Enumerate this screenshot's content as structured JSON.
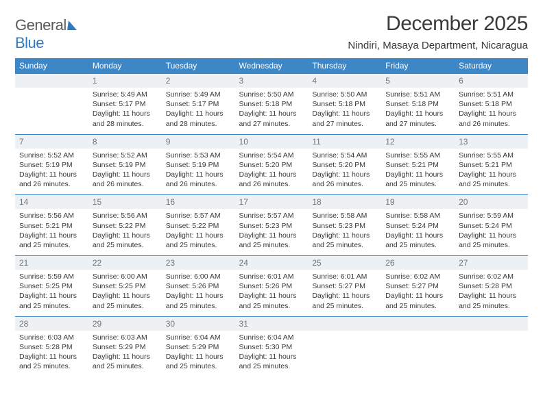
{
  "brand": {
    "name_a": "General",
    "name_b": "Blue"
  },
  "title": "December 2025",
  "location": "Nindiri, Masaya Department, Nicaragua",
  "colors": {
    "header_bg": "#3d87c7",
    "header_text": "#ffffff",
    "daynum_bg": "#eef1f3",
    "daynum_text": "#707477",
    "rule": "#3d87c7",
    "body_text": "#383838",
    "title_text": "#3a3a3a"
  },
  "daysOfWeek": [
    "Sunday",
    "Monday",
    "Tuesday",
    "Wednesday",
    "Thursday",
    "Friday",
    "Saturday"
  ],
  "weeks": [
    [
      {
        "n": "",
        "sr": "",
        "ss": "",
        "dl": ""
      },
      {
        "n": "1",
        "sr": "5:49 AM",
        "ss": "5:17 PM",
        "dl": "11 hours and 28 minutes."
      },
      {
        "n": "2",
        "sr": "5:49 AM",
        "ss": "5:17 PM",
        "dl": "11 hours and 28 minutes."
      },
      {
        "n": "3",
        "sr": "5:50 AM",
        "ss": "5:18 PM",
        "dl": "11 hours and 27 minutes."
      },
      {
        "n": "4",
        "sr": "5:50 AM",
        "ss": "5:18 PM",
        "dl": "11 hours and 27 minutes."
      },
      {
        "n": "5",
        "sr": "5:51 AM",
        "ss": "5:18 PM",
        "dl": "11 hours and 27 minutes."
      },
      {
        "n": "6",
        "sr": "5:51 AM",
        "ss": "5:18 PM",
        "dl": "11 hours and 26 minutes."
      }
    ],
    [
      {
        "n": "7",
        "sr": "5:52 AM",
        "ss": "5:19 PM",
        "dl": "11 hours and 26 minutes."
      },
      {
        "n": "8",
        "sr": "5:52 AM",
        "ss": "5:19 PM",
        "dl": "11 hours and 26 minutes."
      },
      {
        "n": "9",
        "sr": "5:53 AM",
        "ss": "5:19 PM",
        "dl": "11 hours and 26 minutes."
      },
      {
        "n": "10",
        "sr": "5:54 AM",
        "ss": "5:20 PM",
        "dl": "11 hours and 26 minutes."
      },
      {
        "n": "11",
        "sr": "5:54 AM",
        "ss": "5:20 PM",
        "dl": "11 hours and 26 minutes."
      },
      {
        "n": "12",
        "sr": "5:55 AM",
        "ss": "5:21 PM",
        "dl": "11 hours and 25 minutes."
      },
      {
        "n": "13",
        "sr": "5:55 AM",
        "ss": "5:21 PM",
        "dl": "11 hours and 25 minutes."
      }
    ],
    [
      {
        "n": "14",
        "sr": "5:56 AM",
        "ss": "5:21 PM",
        "dl": "11 hours and 25 minutes."
      },
      {
        "n": "15",
        "sr": "5:56 AM",
        "ss": "5:22 PM",
        "dl": "11 hours and 25 minutes."
      },
      {
        "n": "16",
        "sr": "5:57 AM",
        "ss": "5:22 PM",
        "dl": "11 hours and 25 minutes."
      },
      {
        "n": "17",
        "sr": "5:57 AM",
        "ss": "5:23 PM",
        "dl": "11 hours and 25 minutes."
      },
      {
        "n": "18",
        "sr": "5:58 AM",
        "ss": "5:23 PM",
        "dl": "11 hours and 25 minutes."
      },
      {
        "n": "19",
        "sr": "5:58 AM",
        "ss": "5:24 PM",
        "dl": "11 hours and 25 minutes."
      },
      {
        "n": "20",
        "sr": "5:59 AM",
        "ss": "5:24 PM",
        "dl": "11 hours and 25 minutes."
      }
    ],
    [
      {
        "n": "21",
        "sr": "5:59 AM",
        "ss": "5:25 PM",
        "dl": "11 hours and 25 minutes."
      },
      {
        "n": "22",
        "sr": "6:00 AM",
        "ss": "5:25 PM",
        "dl": "11 hours and 25 minutes."
      },
      {
        "n": "23",
        "sr": "6:00 AM",
        "ss": "5:26 PM",
        "dl": "11 hours and 25 minutes."
      },
      {
        "n": "24",
        "sr": "6:01 AM",
        "ss": "5:26 PM",
        "dl": "11 hours and 25 minutes."
      },
      {
        "n": "25",
        "sr": "6:01 AM",
        "ss": "5:27 PM",
        "dl": "11 hours and 25 minutes."
      },
      {
        "n": "26",
        "sr": "6:02 AM",
        "ss": "5:27 PM",
        "dl": "11 hours and 25 minutes."
      },
      {
        "n": "27",
        "sr": "6:02 AM",
        "ss": "5:28 PM",
        "dl": "11 hours and 25 minutes."
      }
    ],
    [
      {
        "n": "28",
        "sr": "6:03 AM",
        "ss": "5:28 PM",
        "dl": "11 hours and 25 minutes."
      },
      {
        "n": "29",
        "sr": "6:03 AM",
        "ss": "5:29 PM",
        "dl": "11 hours and 25 minutes."
      },
      {
        "n": "30",
        "sr": "6:04 AM",
        "ss": "5:29 PM",
        "dl": "11 hours and 25 minutes."
      },
      {
        "n": "31",
        "sr": "6:04 AM",
        "ss": "5:30 PM",
        "dl": "11 hours and 25 minutes."
      },
      {
        "n": "",
        "sr": "",
        "ss": "",
        "dl": ""
      },
      {
        "n": "",
        "sr": "",
        "ss": "",
        "dl": ""
      },
      {
        "n": "",
        "sr": "",
        "ss": "",
        "dl": ""
      }
    ]
  ],
  "labels": {
    "sunrise": "Sunrise:",
    "sunset": "Sunset:",
    "daylight": "Daylight:"
  }
}
